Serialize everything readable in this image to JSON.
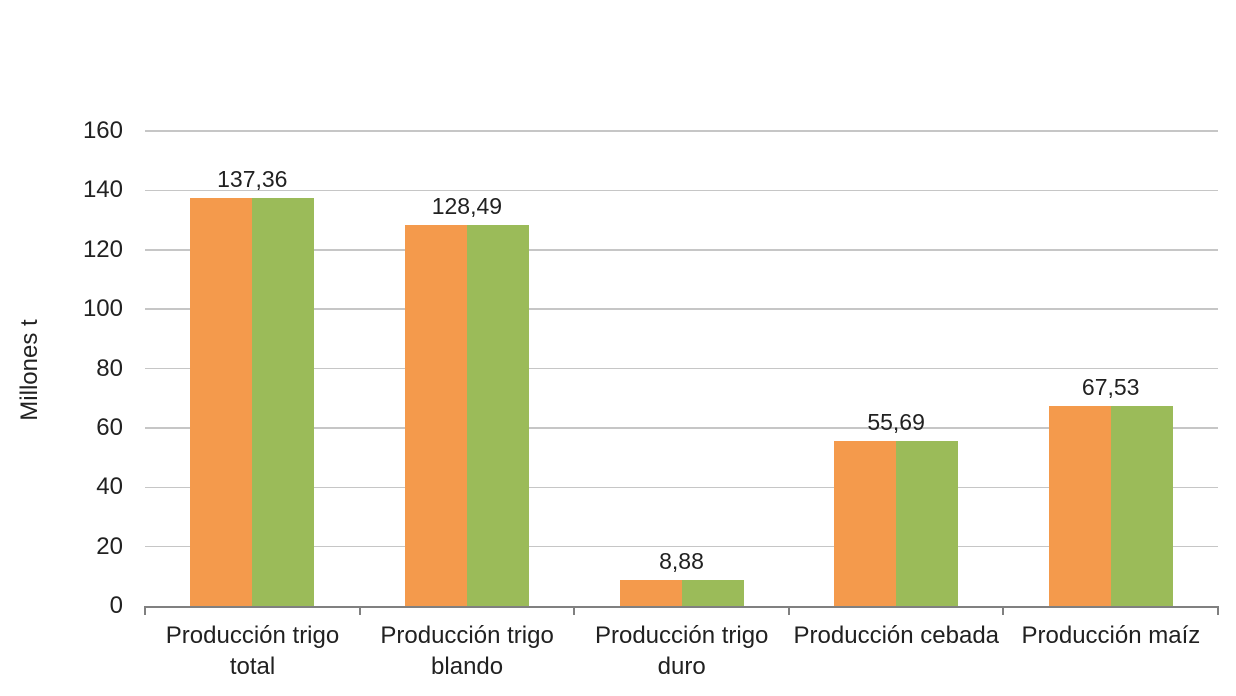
{
  "chart_data": {
    "type": "bar",
    "title": "",
    "xlabel": "",
    "ylabel": "Millones t",
    "categories": [
      "Producción trigo total",
      "Producción trigo blando",
      "Producción trigo duro",
      "Producción cebada",
      "Producción maíz"
    ],
    "series": [
      {
        "name": "orange",
        "color": "#F49A4C",
        "values": [
          137.36,
          128.49,
          8.88,
          55.69,
          67.53
        ]
      },
      {
        "name": "green",
        "color": "#9BBB59",
        "values": [
          137.36,
          128.49,
          8.88,
          55.69,
          67.53
        ]
      }
    ],
    "value_labels": [
      "137,36",
      "128,49",
      "8,88",
      "55,69",
      "67,53"
    ],
    "yticks": [
      0,
      20,
      40,
      60,
      80,
      100,
      120,
      140,
      160
    ],
    "ytick_labels": [
      "0",
      "20",
      "40",
      "60",
      "80",
      "100",
      "120",
      "140",
      "160"
    ],
    "ylim": [
      0,
      160
    ],
    "grid": true,
    "legend": false,
    "colors": {
      "gridline": "#c6c6c6",
      "axis": "#808080",
      "text": "#212121",
      "background": "#ffffff"
    }
  }
}
